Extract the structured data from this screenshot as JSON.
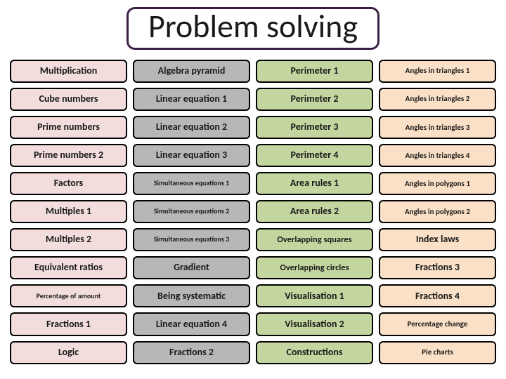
{
  "title": "Problem solving",
  "title_border_color": "#3b2046",
  "columns": [
    {
      "bg": "#f2dddc",
      "items": [
        {
          "label": "Multiplication",
          "size": "lg"
        },
        {
          "label": "Cube numbers",
          "size": "lg"
        },
        {
          "label": "Prime numbers",
          "size": "lg"
        },
        {
          "label": "Prime numbers 2",
          "size": "lg"
        },
        {
          "label": "Factors",
          "size": "lg"
        },
        {
          "label": "Multiples 1",
          "size": "lg"
        },
        {
          "label": "Multiples 2",
          "size": "lg"
        },
        {
          "label": "Equivalent ratios",
          "size": "lg"
        },
        {
          "label": "Percentage of amount",
          "size": "xs"
        },
        {
          "label": "Fractions 1",
          "size": "lg"
        },
        {
          "label": "Logic",
          "size": "lg"
        }
      ]
    },
    {
      "bg": "#b7b7b6",
      "items": [
        {
          "label": "Algebra pyramid",
          "size": "lg"
        },
        {
          "label": "Linear equation 1",
          "size": "lg"
        },
        {
          "label": "Linear equation 2",
          "size": "lg"
        },
        {
          "label": "Linear equation 3",
          "size": "lg"
        },
        {
          "label": "Simultaneous equations 1",
          "size": "xs"
        },
        {
          "label": "Simultaneous equations 2",
          "size": "xs"
        },
        {
          "label": "Simultaneous equations 3",
          "size": "xs"
        },
        {
          "label": "Gradient",
          "size": "lg"
        },
        {
          "label": "Being systematic",
          "size": "lg"
        },
        {
          "label": "Linear equation 4",
          "size": "lg"
        },
        {
          "label": "Fractions 2",
          "size": "lg"
        }
      ]
    },
    {
      "bg": "#c4d6a0",
      "items": [
        {
          "label": "Perimeter 1",
          "size": "lg"
        },
        {
          "label": "Perimeter 2",
          "size": "lg"
        },
        {
          "label": "Perimeter 3",
          "size": "lg"
        },
        {
          "label": "Perimeter 4",
          "size": "lg"
        },
        {
          "label": "Area rules 1",
          "size": "lg"
        },
        {
          "label": "Area rules 2",
          "size": "lg"
        },
        {
          "label": "Overlapping squares",
          "size": "md"
        },
        {
          "label": "Overlapping circles",
          "size": "md"
        },
        {
          "label": "Visualisation 1",
          "size": "lg"
        },
        {
          "label": "Visualisation 2",
          "size": "lg"
        },
        {
          "label": "Constructions",
          "size": "lg"
        }
      ]
    },
    {
      "bg": "#f9e0c6",
      "items": [
        {
          "label": "Angles in triangles 1",
          "size": "sm"
        },
        {
          "label": "Angles in triangles 2",
          "size": "sm"
        },
        {
          "label": "Angles in triangles 3",
          "size": "sm"
        },
        {
          "label": "Angles in triangles 4",
          "size": "sm"
        },
        {
          "label": "Angles in polygons 1",
          "size": "sm"
        },
        {
          "label": "Angles in polygons 2",
          "size": "sm"
        },
        {
          "label": "Index laws",
          "size": "lg"
        },
        {
          "label": "Fractions 3",
          "size": "lg"
        },
        {
          "label": "Fractions 4",
          "size": "lg"
        },
        {
          "label": "Percentage change",
          "size": "sm"
        },
        {
          "label": "Pie charts",
          "size": "sm"
        }
      ]
    }
  ]
}
